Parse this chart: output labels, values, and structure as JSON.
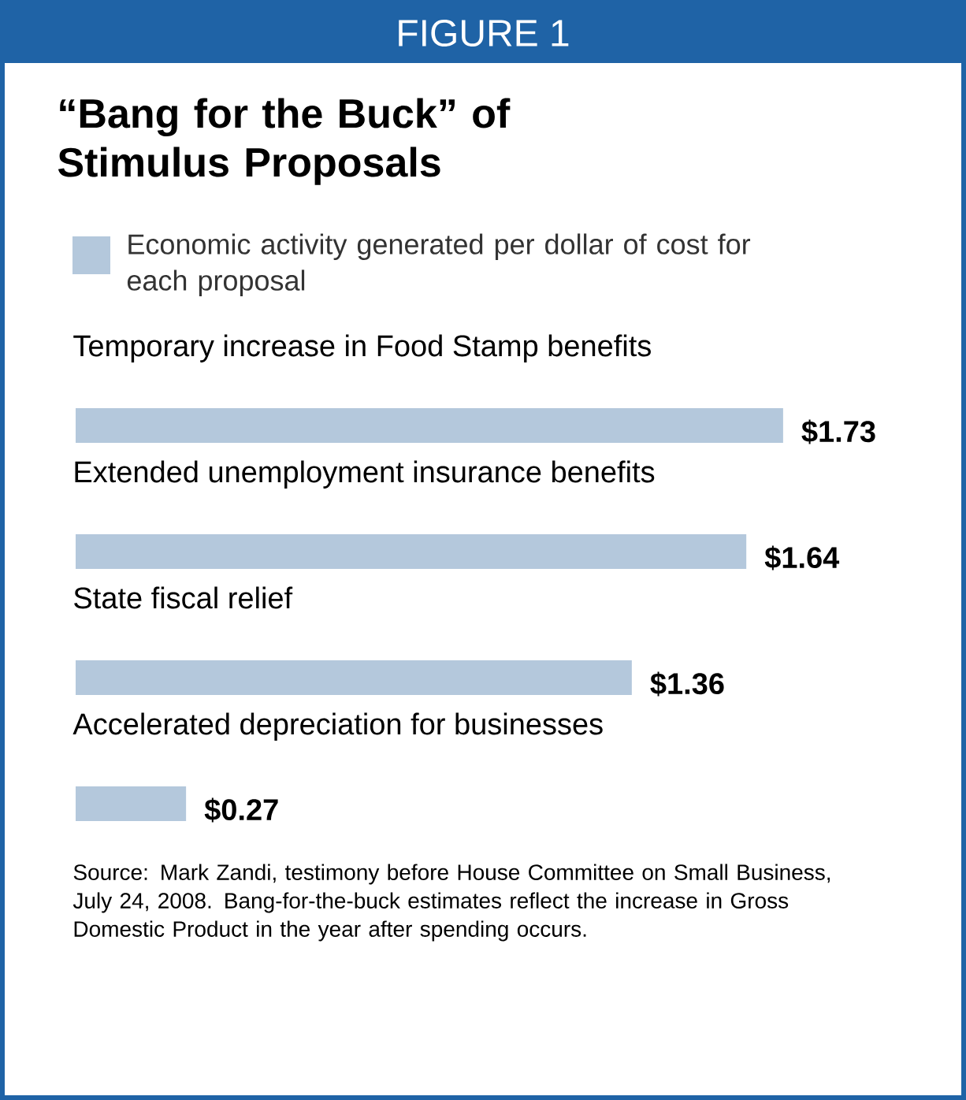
{
  "chart_data": {
    "type": "bar",
    "orientation": "horizontal",
    "title": "“Bang for the Buck” of Stimulus Proposals",
    "categories": [
      "Temporary increase in Food Stamp benefits",
      "Extended unemployment insurance benefits",
      "State fiscal relief",
      "Accelerated depreciation for businesses"
    ],
    "series": [
      {
        "name": "Economic activity generated per dollar of cost for each proposal",
        "color": "#b4c8dc",
        "values": [
          1.73,
          1.64,
          1.36,
          0.27
        ],
        "value_labels": [
          "$1.73",
          "$1.64",
          "$1.36",
          "$0.27"
        ]
      }
    ],
    "legend": "top left",
    "annotations": [
      "FIGURE 1",
      "Source: Mark Zandi, testimony before House Committee on Small Business, July 24, 2008. Bang-for-the-buck estimates reflect the increase in Gross Domestic Product in the year after spending occurs."
    ]
  }
}
